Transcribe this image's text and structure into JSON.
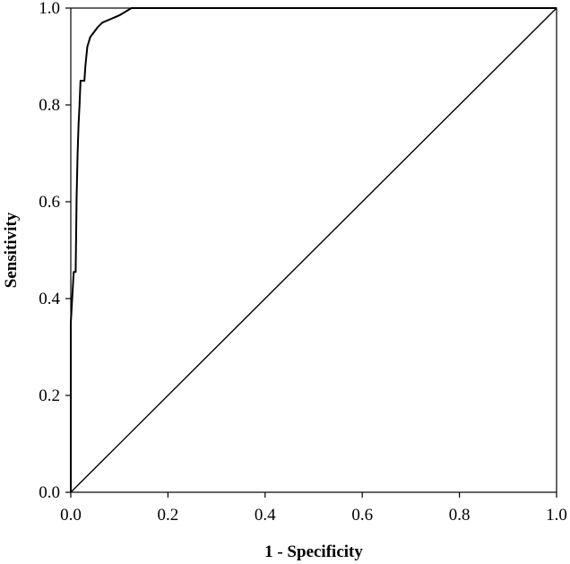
{
  "chart_data": {
    "type": "line",
    "title": "",
    "xlabel": "1 - Specificity",
    "ylabel": "Sensitivity",
    "xlim": [
      0.0,
      1.0
    ],
    "ylim": [
      0.0,
      1.0
    ],
    "x_ticks": [
      "0.0",
      "0.2",
      "0.4",
      "0.6",
      "0.8",
      "1.0"
    ],
    "y_ticks": [
      "0.0",
      "0.2",
      "0.4",
      "0.6",
      "0.8",
      "1.0"
    ],
    "grid": false,
    "legend": "none",
    "series": [
      {
        "style": "solid",
        "color": "#000000",
        "x": [
          0.0,
          0.0,
          0.004,
          0.006,
          0.008,
          0.01,
          0.012,
          0.014,
          0.016,
          0.018,
          0.02,
          0.022,
          0.025,
          0.028,
          0.03,
          0.034,
          0.04,
          0.055,
          0.065,
          0.1,
          0.125,
          0.13,
          1.0
        ],
        "y": [
          0.0,
          0.35,
          0.42,
          0.455,
          0.455,
          0.455,
          0.61,
          0.7,
          0.76,
          0.8,
          0.85,
          0.85,
          0.85,
          0.85,
          0.88,
          0.92,
          0.94,
          0.96,
          0.97,
          0.985,
          1.0,
          1.0,
          1.0
        ]
      },
      {
        "style": "reference",
        "color": "#000000",
        "x": [
          0.0,
          1.0
        ],
        "y": [
          0.0,
          1.0
        ]
      }
    ]
  }
}
